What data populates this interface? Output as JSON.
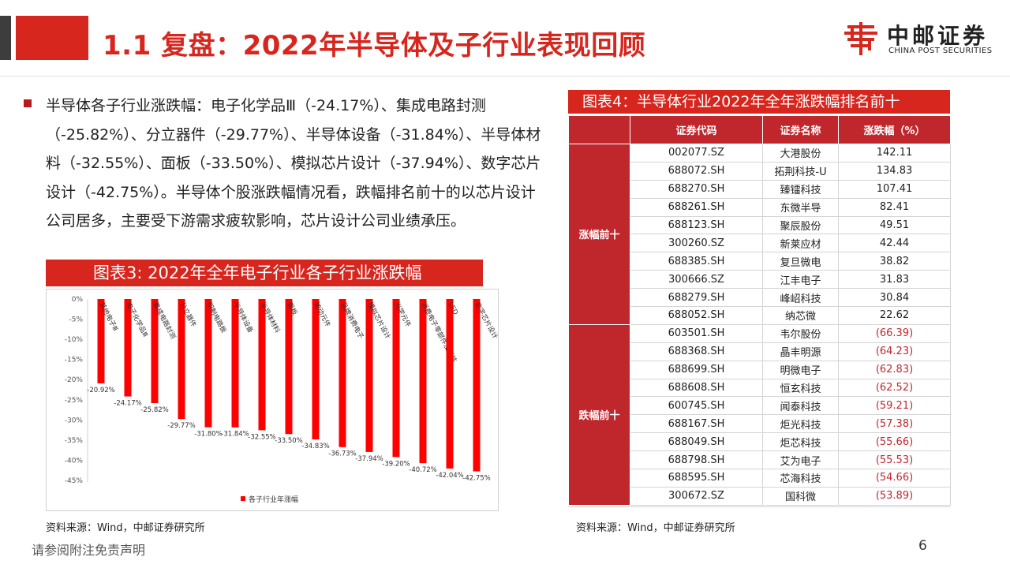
{
  "header": {
    "title": "1.1 复盘：2022年半导体及子行业表现回顾",
    "logo_cn": "中邮证券",
    "logo_en": "CHINA POST SECURITIES"
  },
  "paragraph": "半导体各子行业涨跌幅：电子化学品Ⅲ（-24.17%）、集成电路封测（-25.82%）、分立器件（-29.77%）、半导体设备（-31.84%）、半导体材料（-32.55%）、面板（-33.50%）、模拟芯片设计（-37.94%）、数字芯片设计（-42.75%）。半导体个股涨跌幅情况看，跌幅排名前十的以芯片设计公司居多，主要受下游需求疲软影响，芯片设计公司业绩承压。",
  "chart3": {
    "title": "图表3:   2022年全年电子行业各子行业涨跌幅",
    "source": "资料来源：Wind，中邮证券研究所"
  },
  "chart_data": {
    "type": "bar",
    "title": "2022年全年电子行业各子行业涨跌幅",
    "categories": [
      "其他电子Ⅲ",
      "电子化学品Ⅲ",
      "集成电路封测",
      "分立器件",
      "印制电路板",
      "半导体设备",
      "半导体材料",
      "面板",
      "被动元件",
      "品牌消费电子",
      "模拟芯片设计",
      "光学元件",
      "消费电子零部件及组装",
      "LED",
      "数字芯片设计"
    ],
    "series": [
      {
        "name": "各子行业年涨幅",
        "values": [
          -20.92,
          -24.17,
          -25.82,
          -29.77,
          -31.8,
          -31.84,
          -32.55,
          -33.5,
          -34.83,
          -36.73,
          -37.94,
          -39.2,
          -40.72,
          -42.04,
          -42.75
        ]
      }
    ],
    "value_labels": [
      "-20.92%",
      "-24.17%",
      "-25.82%",
      "-29.77%",
      "-31.80%",
      "-31.84%",
      "-32.55%",
      "-33.50%",
      "-34.83%",
      "-36.73%",
      "-37.94%",
      "-39.20%",
      "-40.72%",
      "-42.04%",
      "-42.75%"
    ],
    "yticks": [
      "0%",
      "-5%",
      "-10%",
      "-15%",
      "-20%",
      "-25%",
      "-30%",
      "-35%",
      "-40%",
      "-45%"
    ],
    "ylim": [
      -45,
      0
    ],
    "legend_position": "bottom-left",
    "bar_color": "#ff0000"
  },
  "table4": {
    "title": "图表4：半导体行业2022年全年涨跌幅排名前十",
    "headers": [
      "证券代码",
      "证券名称",
      "涨跌幅（%）"
    ],
    "groups": [
      {
        "label": "涨幅前十",
        "rows": [
          [
            "002077.SZ",
            "大港股份",
            "142.11"
          ],
          [
            "688072.SH",
            "拓荆科技-U",
            "134.83"
          ],
          [
            "688270.SH",
            "臻镭科技",
            "107.41"
          ],
          [
            "688261.SH",
            "东微半导",
            "82.41"
          ],
          [
            "688123.SH",
            "聚辰股份",
            "49.51"
          ],
          [
            "300260.SZ",
            "新莱应材",
            "42.44"
          ],
          [
            "688385.SH",
            "复旦微电",
            "38.82"
          ],
          [
            "300666.SZ",
            "江丰电子",
            "31.83"
          ],
          [
            "688279.SH",
            "峰岹科技",
            "30.84"
          ],
          [
            "688052.SH",
            "纳芯微",
            "22.62"
          ]
        ]
      },
      {
        "label": "跌幅前十",
        "rows": [
          [
            "603501.SH",
            "韦尔股份",
            "(66.39)"
          ],
          [
            "688368.SH",
            "晶丰明源",
            "(64.23)"
          ],
          [
            "688699.SH",
            "明微电子",
            "(62.83)"
          ],
          [
            "688608.SH",
            "恒玄科技",
            "(62.52)"
          ],
          [
            "600745.SH",
            "闻泰科技",
            "(59.21)"
          ],
          [
            "688167.SH",
            "炬光科技",
            "(57.38)"
          ],
          [
            "688049.SH",
            "炬芯科技",
            "(55.66)"
          ],
          [
            "688798.SH",
            "艾为电子",
            "(55.53)"
          ],
          [
            "688595.SH",
            "芯海科技",
            "(54.66)"
          ],
          [
            "300672.SZ",
            "国科微",
            "(53.89)"
          ]
        ]
      }
    ],
    "source": "资料来源：Wind，中邮证券研究所"
  },
  "footer": {
    "disclaimer": "请参阅附注免责声明",
    "page_number": "6"
  }
}
